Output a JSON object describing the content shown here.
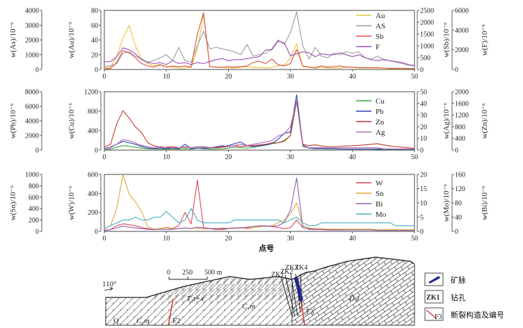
{
  "chart_data": [
    {
      "type": "line",
      "x": [
        0,
        1,
        2,
        3,
        4,
        5,
        6,
        7,
        8,
        9,
        10,
        11,
        12,
        13,
        14,
        15,
        16,
        17,
        18,
        19,
        20,
        21,
        22,
        23,
        24,
        25,
        26,
        27,
        28,
        29,
        30,
        31,
        32,
        33,
        34,
        35,
        36,
        37,
        38,
        39,
        40,
        41,
        42,
        43,
        44,
        45,
        46,
        47,
        48,
        49,
        50
      ],
      "xlim": [
        0,
        50
      ],
      "xticks": [
        "0",
        "10",
        "20",
        "30",
        "40",
        "50"
      ],
      "axes": [
        {
          "label": "w(As)/10⁻⁶",
          "lim": [
            0,
            4000
          ],
          "ticks": [
            "0",
            "1000",
            "2000",
            "3000",
            "4000"
          ]
        },
        {
          "label": "w(Au)/10⁻⁹",
          "lim": [
            0,
            80
          ],
          "ticks": [
            "0",
            "20",
            "40",
            "60",
            "80"
          ]
        },
        {
          "label": "w(Sb)/10⁻⁶",
          "lim": [
            0,
            2500
          ],
          "ticks": [
            "0",
            "500",
            "1000",
            "1500",
            "2000",
            "2500"
          ]
        },
        {
          "label": "w(F)/10⁻⁶",
          "lim": [
            0,
            6000
          ],
          "ticks": [
            "0",
            "2000",
            "4000",
            "6000"
          ]
        }
      ],
      "series": [
        {
          "name": "Au",
          "color": "#e8c33a",
          "axis": 1,
          "values": [
            2,
            3,
            18,
            42,
            60,
            32,
            15,
            8,
            5,
            7,
            4,
            3,
            2,
            2,
            3,
            28,
            74,
            4,
            3,
            3,
            2,
            2,
            3,
            4,
            3,
            3,
            2,
            3,
            5,
            6,
            15,
            35,
            4,
            3,
            2,
            3,
            2,
            2,
            2,
            3,
            3,
            2,
            2,
            2,
            2,
            2,
            1,
            1,
            1,
            1,
            1
          ]
        },
        {
          "name": "AS",
          "color": "#9a9a9a",
          "axis": 0,
          "values": [
            200,
            250,
            400,
            1100,
            1200,
            900,
            700,
            500,
            600,
            800,
            1000,
            600,
            1500,
            600,
            500,
            1600,
            2600,
            1400,
            1500,
            1400,
            1300,
            1200,
            1000,
            1700,
            900,
            1000,
            1100,
            1400,
            2000,
            1700,
            2500,
            3900,
            1600,
            700,
            1500,
            900,
            800,
            1100,
            1000,
            1200,
            1100,
            1200,
            800,
            700,
            900,
            700,
            600,
            500,
            400,
            300,
            250
          ]
        },
        {
          "name": "Sb",
          "color": "#d95040",
          "axis": 2,
          "values": [
            20,
            40,
            300,
            800,
            700,
            500,
            250,
            150,
            100,
            200,
            100,
            150,
            120,
            150,
            100,
            1500,
            2400,
            120,
            100,
            100,
            120,
            100,
            120,
            150,
            300,
            350,
            250,
            450,
            200,
            150,
            250,
            850,
            150,
            100,
            80,
            150,
            100,
            120,
            150,
            100,
            100,
            80,
            80,
            80,
            80,
            60,
            50,
            50,
            50,
            40,
            30
          ]
        },
        {
          "name": "F",
          "color": "#9b4cb5",
          "axis": 3,
          "values": [
            800,
            800,
            1300,
            2200,
            2000,
            1600,
            1000,
            700,
            600,
            700,
            500,
            900,
            600,
            700,
            500,
            700,
            600,
            800,
            1000,
            1100,
            900,
            1000,
            1000,
            1100,
            1200,
            1300,
            2000,
            2000,
            2900,
            2700,
            1400,
            1600,
            1800,
            1700,
            1300,
            1600,
            1500,
            1500,
            1700,
            1500,
            1300,
            1500,
            1200,
            1000,
            900,
            1000,
            900,
            800,
            700,
            500,
            400
          ]
        }
      ],
      "xlabel": ""
    },
    {
      "type": "line",
      "x": [
        0,
        1,
        2,
        3,
        4,
        5,
        6,
        7,
        8,
        9,
        10,
        11,
        12,
        13,
        14,
        15,
        16,
        17,
        18,
        19,
        20,
        21,
        22,
        23,
        24,
        25,
        26,
        27,
        28,
        29,
        30,
        31,
        32,
        33,
        34,
        35,
        36,
        37,
        38,
        39,
        40,
        41,
        42,
        43,
        44,
        45,
        46,
        47,
        48,
        49,
        50
      ],
      "xlim": [
        0,
        50
      ],
      "xticks": [
        "0",
        "10",
        "20",
        "30",
        "40",
        "50"
      ],
      "axes": [
        {
          "label": "w(Pb)/10⁻⁶",
          "lim": [
            0,
            8000
          ],
          "ticks": [
            "0",
            "2000",
            "4000",
            "6000",
            "8000"
          ]
        },
        {
          "label": "w(Cu)/10⁻⁶",
          "lim": [
            0,
            1200
          ],
          "ticks": [
            "0",
            "400",
            "800",
            "1200"
          ]
        },
        {
          "label": "w(Ag)/10⁻⁶",
          "lim": [
            0,
            50
          ],
          "ticks": [
            "0",
            "10",
            "20",
            "30",
            "40",
            "50"
          ]
        },
        {
          "label": "w(Zn)/10⁻⁶",
          "lim": [
            0,
            2000
          ],
          "ticks": [
            "0",
            "400",
            "800",
            "1200",
            "1600",
            "2000"
          ]
        }
      ],
      "series": [
        {
          "name": "Cu",
          "color": "#3aa63a",
          "axis": 1,
          "values": [
            10,
            20,
            60,
            90,
            80,
            60,
            40,
            30,
            25,
            20,
            20,
            25,
            20,
            30,
            20,
            40,
            30,
            25,
            25,
            30,
            40,
            60,
            50,
            40,
            60,
            80,
            100,
            130,
            150,
            200,
            300,
            1000,
            80,
            40,
            30,
            30,
            25,
            25,
            25,
            20,
            20,
            20,
            20,
            20,
            15,
            15,
            15,
            10,
            10,
            10,
            10
          ]
        },
        {
          "name": "Pb",
          "color": "#2c3fb0",
          "axis": 0,
          "values": [
            200,
            400,
            800,
            1200,
            1000,
            800,
            500,
            300,
            200,
            300,
            200,
            300,
            200,
            800,
            200,
            300,
            250,
            300,
            400,
            500,
            600,
            900,
            1100,
            600,
            500,
            600,
            700,
            900,
            1500,
            2300,
            2500,
            7600,
            700,
            300,
            200,
            250,
            200,
            200,
            150,
            150,
            150,
            150,
            150,
            150,
            150,
            120,
            120,
            100,
            100,
            100,
            100
          ]
        },
        {
          "name": "Zn",
          "color": "#c0392b",
          "axis": 3,
          "values": [
            100,
            200,
            900,
            1350,
            1100,
            800,
            600,
            250,
            150,
            100,
            100,
            120,
            80,
            100,
            80,
            120,
            100,
            80,
            80,
            100,
            120,
            150,
            120,
            140,
            160,
            180,
            200,
            250,
            250,
            300,
            500,
            1700,
            200,
            150,
            180,
            140,
            120,
            120,
            130,
            140,
            150,
            160,
            180,
            200,
            220,
            180,
            140,
            120,
            100,
            80,
            60
          ]
        },
        {
          "name": "Ag",
          "color": "#b46ab5",
          "axis": 2,
          "values": [
            1,
            2,
            5,
            9,
            8,
            6,
            4,
            3,
            2,
            3,
            2,
            2,
            2,
            3,
            2,
            3,
            3,
            2,
            3,
            4,
            3,
            4,
            5,
            4,
            5,
            6,
            7,
            8,
            12,
            14,
            20,
            42,
            3,
            2,
            2,
            2,
            2,
            2,
            2,
            2,
            2,
            2,
            2,
            2,
            2,
            1,
            1,
            1,
            1,
            1,
            1
          ]
        }
      ],
      "xlabel": ""
    },
    {
      "type": "line",
      "x": [
        0,
        1,
        2,
        3,
        4,
        5,
        6,
        7,
        8,
        9,
        10,
        11,
        12,
        13,
        14,
        15,
        16,
        17,
        18,
        19,
        20,
        21,
        22,
        23,
        24,
        25,
        26,
        27,
        28,
        29,
        30,
        31,
        32,
        33,
        34,
        35,
        36,
        37,
        38,
        39,
        40,
        41,
        42,
        43,
        44,
        45,
        46,
        47,
        48,
        49,
        50
      ],
      "xlim": [
        0,
        50
      ],
      "xticks": [
        "0",
        "10",
        "20",
        "30",
        "40",
        "50"
      ],
      "axes": [
        {
          "label": "w(Sn)/10⁻⁶",
          "lim": [
            0,
            1000
          ],
          "ticks": [
            "0",
            "200",
            "400",
            "600",
            "800",
            "1000"
          ]
        },
        {
          "label": "w(W)/10⁻⁶",
          "lim": [
            0,
            600
          ],
          "ticks": [
            "0",
            "200",
            "400",
            "600"
          ]
        },
        {
          "label": "w(Mo)/10⁻⁶",
          "lim": [
            0,
            20
          ],
          "ticks": [
            "0",
            "5",
            "10",
            "15",
            "20"
          ]
        },
        {
          "label": "w(Bi)/10⁻⁶",
          "lim": [
            0,
            160
          ],
          "ticks": [
            "0",
            "40",
            "80",
            "120",
            "160"
          ]
        }
      ],
      "series": [
        {
          "name": "W",
          "color": "#d9454f",
          "axis": 1,
          "values": [
            10,
            20,
            60,
            80,
            70,
            60,
            40,
            30,
            20,
            30,
            40,
            30,
            60,
            200,
            80,
            540,
            40,
            30,
            20,
            20,
            30,
            30,
            40,
            30,
            40,
            50,
            60,
            50,
            40,
            30,
            40,
            120,
            40,
            30,
            20,
            20,
            20,
            20,
            20,
            15,
            15,
            15,
            15,
            15,
            10,
            10,
            10,
            10,
            10,
            10,
            10
          ]
        },
        {
          "name": "Sn",
          "color": "#e0a63a",
          "axis": 0,
          "values": [
            50,
            100,
            400,
            1000,
            650,
            520,
            350,
            80,
            40,
            50,
            60,
            40,
            50,
            60,
            50,
            60,
            40,
            50,
            50,
            60,
            50,
            50,
            60,
            60,
            70,
            80,
            90,
            100,
            150,
            200,
            300,
            500,
            100,
            60,
            50,
            50,
            40,
            40,
            40,
            40,
            40,
            40,
            40,
            40,
            30,
            30,
            30,
            30,
            30,
            30,
            30
          ]
        },
        {
          "name": "Bi",
          "color": "#8a5cb5",
          "axis": 3,
          "values": [
            2,
            5,
            10,
            15,
            12,
            10,
            8,
            6,
            5,
            6,
            5,
            6,
            8,
            10,
            8,
            12,
            10,
            8,
            8,
            8,
            9,
            10,
            10,
            12,
            14,
            16,
            15,
            14,
            16,
            25,
            60,
            150,
            12,
            6,
            5,
            5,
            4,
            4,
            4,
            4,
            4,
            4,
            4,
            4,
            3,
            3,
            3,
            3,
            3,
            3,
            3
          ]
        },
        {
          "name": "Mo",
          "color": "#3fb0c0",
          "axis": 2,
          "values": [
            1,
            2,
            3,
            4,
            4,
            5,
            4,
            4,
            5,
            5,
            7,
            5,
            3,
            4,
            8,
            4,
            3,
            3,
            3,
            3,
            3,
            4,
            4,
            4,
            4,
            4,
            4,
            4,
            4,
            3,
            4,
            5,
            3,
            2,
            2,
            3,
            3,
            3,
            3,
            3,
            3,
            3,
            3,
            3,
            3,
            3,
            3,
            2,
            2,
            2,
            2
          ]
        }
      ],
      "xlabel": "点号"
    }
  ],
  "section": {
    "orientation": "110°",
    "scale_labels": [
      "0",
      "250",
      "500 m"
    ],
    "drillholes": [
      "ZK1",
      "ZK2",
      "ZK3",
      "ZK4"
    ],
    "strata": [
      "Q",
      "C₁m",
      "T₃t+x",
      "C₁m",
      "D₃t"
    ],
    "faults": [
      "F2",
      "F3"
    ],
    "legend": [
      {
        "symbol": "vein",
        "label": "矿脉"
      },
      {
        "symbol": "ZK1",
        "label": "钻孔"
      },
      {
        "symbol": "F3",
        "label": "断裂构造及编号"
      }
    ]
  }
}
